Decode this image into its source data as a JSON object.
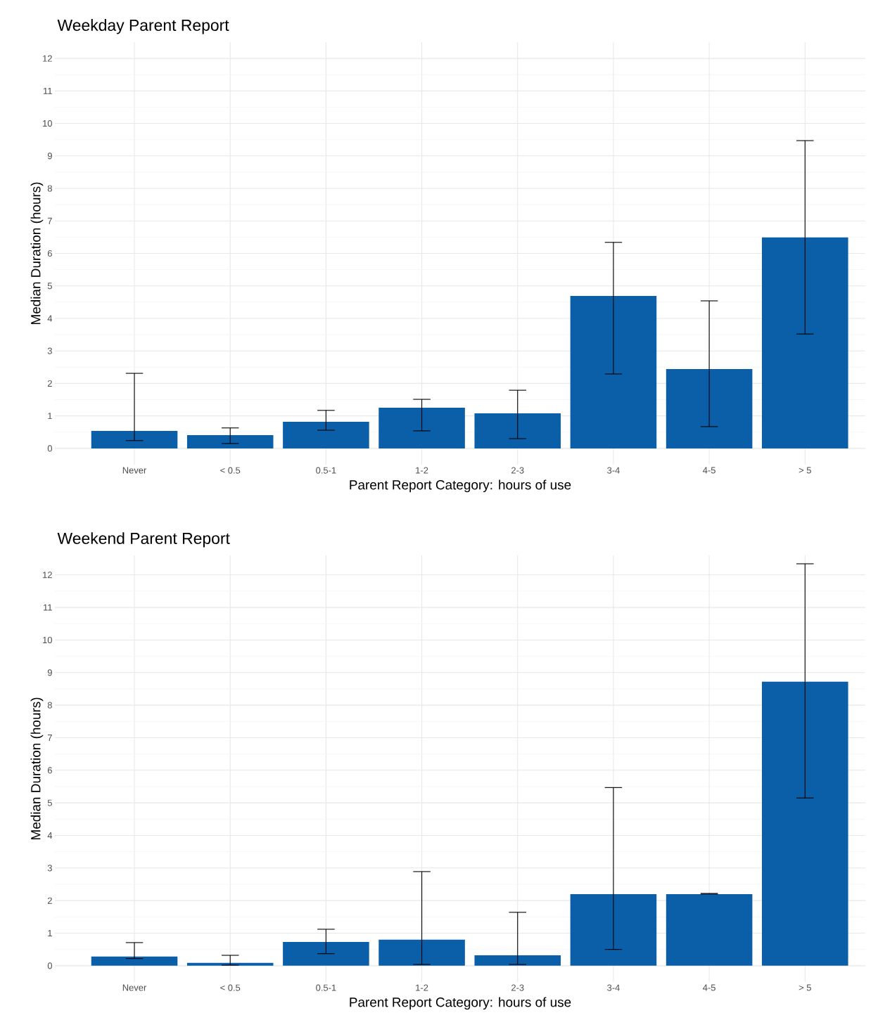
{
  "chart_data": [
    {
      "type": "bar",
      "title": "Weekday Parent Report",
      "xlabel": "Parent Report Category: hours of use",
      "ylabel": "Median Duration (hours)",
      "categories": [
        "Never",
        "< 0.5",
        "0.5-1",
        "1-2",
        "2-3",
        "3-4",
        "4-5",
        "> 5"
      ],
      "values": [
        0.54,
        0.41,
        0.82,
        1.25,
        1.08,
        4.69,
        2.44,
        6.49
      ],
      "errors": [
        [
          0.24,
          2.31
        ],
        [
          0.15,
          0.63
        ],
        [
          0.56,
          1.17
        ],
        [
          0.54,
          1.51
        ],
        [
          0.3,
          1.79
        ],
        [
          2.29,
          6.34
        ],
        [
          0.67,
          4.54
        ],
        [
          3.52,
          9.47
        ]
      ],
      "color": "#0b5ea8",
      "ylim": [
        -0.5,
        12.5
      ],
      "yticks": [
        0,
        1,
        2,
        3,
        4,
        5,
        6,
        7,
        8,
        9,
        10,
        11,
        12
      ],
      "grid": true
    },
    {
      "type": "bar",
      "title": "Weekend Parent Report",
      "xlabel": "Parent Report Category: hours of use",
      "ylabel": "Median Duration (hours)",
      "categories": [
        "Never",
        "< 0.5",
        "0.5-1",
        "1-2",
        "2-3",
        "3-4",
        "4-5",
        "> 5"
      ],
      "values": [
        0.28,
        0.09,
        0.73,
        0.8,
        0.32,
        2.2,
        2.2,
        8.72
      ],
      "errors": [
        [
          0.22,
          0.71
        ],
        [
          0.02,
          0.32
        ],
        [
          0.37,
          1.12
        ],
        [
          0.04,
          2.89
        ],
        [
          0.04,
          1.64
        ],
        [
          0.5,
          5.47
        ],
        [
          2.2,
          2.22
        ],
        [
          5.15,
          12.34
        ]
      ],
      "color": "#0b5ea8",
      "ylim": [
        -0.5,
        12.6
      ],
      "yticks": [
        0,
        1,
        2,
        3,
        4,
        5,
        6,
        7,
        8,
        9,
        10,
        11,
        12
      ],
      "grid": true
    }
  ]
}
